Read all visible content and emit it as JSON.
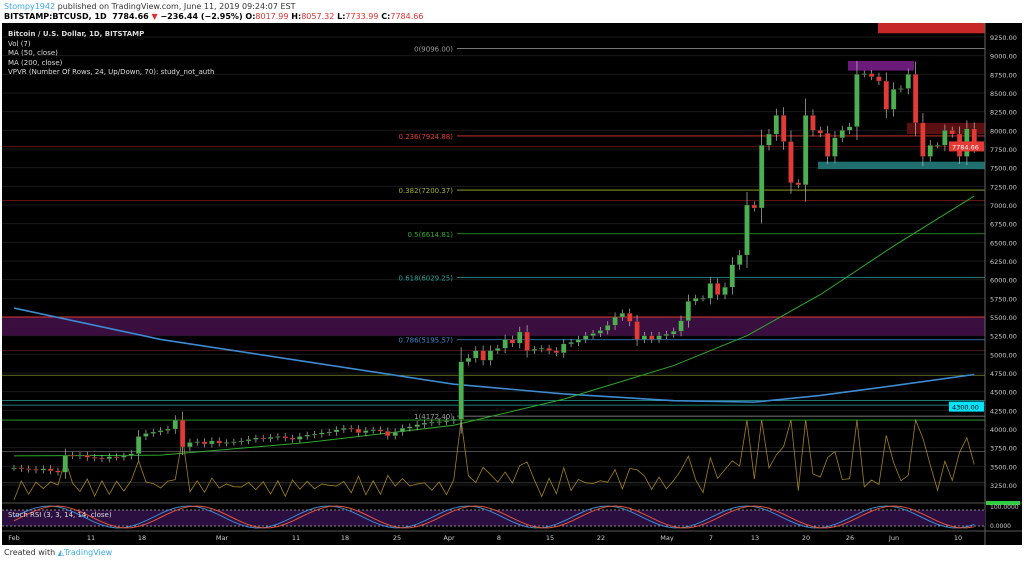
{
  "header": {
    "author": "Stompy1942",
    "published": "published on TradingView.com, June 11, 2019 09:24:07 EST",
    "symbol": "BITSTAMP:BTCUSD, 1D",
    "last": "7784.66",
    "change": "−236.44 (−2.95%)",
    "o_label": "O:",
    "o": "8017.99",
    "h_label": "H:",
    "h": "8057.32",
    "l_label": "L:",
    "l": "7733.99",
    "c_label": "C:",
    "c": "7784.66"
  },
  "legend": [
    "Bitcoin / U.S. Dollar, 1D, BITSTAMP",
    "Vol (7)",
    "MA (50, close)",
    "MA (200, close)",
    "VPVR (Number Of Rows, 24, Up/Down, 70): study_not_auth"
  ],
  "stoch_label": "Stoch RSI (3, 3, 14, 14, close)",
  "footer": {
    "created": "Created with",
    "brand": "TradingView"
  },
  "colors": {
    "up": "#4caf50",
    "down": "#e53935",
    "ma50": "#2eaa2e",
    "ma200": "#3d8bd0",
    "bg": "#000000"
  },
  "chart_data": {
    "type": "candlestick",
    "y_ticks": [
      "9250.00",
      "9000.00",
      "8750.00",
      "8500.00",
      "8250.00",
      "8000.00",
      "7750.00",
      "7500.00",
      "7250.00",
      "7000.00",
      "6750.00",
      "6500.00",
      "6250.00",
      "6000.00",
      "5750.00",
      "5500.00",
      "5250.00",
      "5000.00",
      "4750.00",
      "4500.00",
      "4250.00",
      "4000.00",
      "3750.00",
      "3500.00",
      "3250.00"
    ],
    "price_label": "7784.66",
    "ma_label": "4300.00",
    "stoch_ticks": [
      "100.0000",
      "0.0000"
    ],
    "x_ticks": [
      "Feb",
      "11",
      "18",
      "Mar",
      "11",
      "18",
      "25",
      "Apr",
      "8",
      "15",
      "22",
      "May",
      "7",
      "13",
      "20",
      "26",
      "Jun",
      "10"
    ],
    "fib": [
      {
        "label": "0(9096.00)",
        "price": 9096,
        "color": "#9e9e9e"
      },
      {
        "label": "0.236(7924.88)",
        "price": 7924.88,
        "color": "#e53935"
      },
      {
        "label": "0.382(7200.37)",
        "price": 7200.37,
        "color": "#a7b52a"
      },
      {
        "label": "0.5(6614.81)",
        "price": 6614.81,
        "color": "#2eaa2e"
      },
      {
        "label": "0.618(6029.25)",
        "price": 6029.25,
        "color": "#26a69a"
      },
      {
        "label": "0.786(5195.57)",
        "price": 5195.57,
        "color": "#3d8bd0"
      },
      {
        "label": "1(4172.40)",
        "price": 4172.4,
        "color": "#9e9e9e"
      }
    ],
    "closes": [
      3480,
      3470,
      3460,
      3450,
      3470,
      3440,
      3420,
      3650,
      3640,
      3650,
      3620,
      3610,
      3600,
      3630,
      3620,
      3640,
      3670,
      3900,
      3940,
      3960,
      3980,
      4000,
      4120,
      3760,
      3820,
      3830,
      3800,
      3840,
      3810,
      3820,
      3830,
      3840,
      3860,
      3880,
      3870,
      3890,
      3900,
      3880,
      3860,
      3900,
      3920,
      3930,
      3950,
      3960,
      3990,
      4010,
      4000,
      3950,
      3980,
      3990,
      3970,
      3910,
      3960,
      4010,
      4030,
      4060,
      4080,
      4090,
      4100,
      4110,
      4130,
      4900,
      4950,
      5050,
      4920,
      5050,
      5080,
      5200,
      5150,
      5300,
      5050,
      5070,
      5080,
      5050,
      5020,
      5140,
      5160,
      5200,
      5250,
      5280,
      5320,
      5390,
      5500,
      5550,
      5440,
      5200,
      5250,
      5200,
      5250,
      5270,
      5310,
      5450,
      5710,
      5750,
      5750,
      5950,
      5800,
      5900,
      6200,
      6330,
      7000,
      6960,
      7800,
      7950,
      8200,
      7850,
      7300,
      7270,
      8200,
      8000,
      7960,
      7650,
      7900,
      8000,
      8050,
      8750,
      8760,
      8720,
      8660,
      8280,
      8550,
      8560,
      8750,
      8100,
      7650,
      7800,
      7800,
      8000,
      7950,
      7650,
      8020,
      7785
    ],
    "ma50": [
      [
        0,
        3640
      ],
      [
        20,
        3650
      ],
      [
        40,
        3820
      ],
      [
        60,
        4050
      ],
      [
        75,
        4400
      ],
      [
        90,
        4850
      ],
      [
        100,
        5250
      ],
      [
        110,
        5800
      ],
      [
        120,
        6450
      ],
      [
        131,
        7120
      ]
    ],
    "ma200": [
      [
        0,
        5620
      ],
      [
        20,
        5200
      ],
      [
        40,
        4900
      ],
      [
        60,
        4600
      ],
      [
        75,
        4470
      ],
      [
        90,
        4380
      ],
      [
        101,
        4360
      ],
      [
        110,
        4450
      ],
      [
        120,
        4580
      ],
      [
        131,
        4730
      ]
    ]
  }
}
